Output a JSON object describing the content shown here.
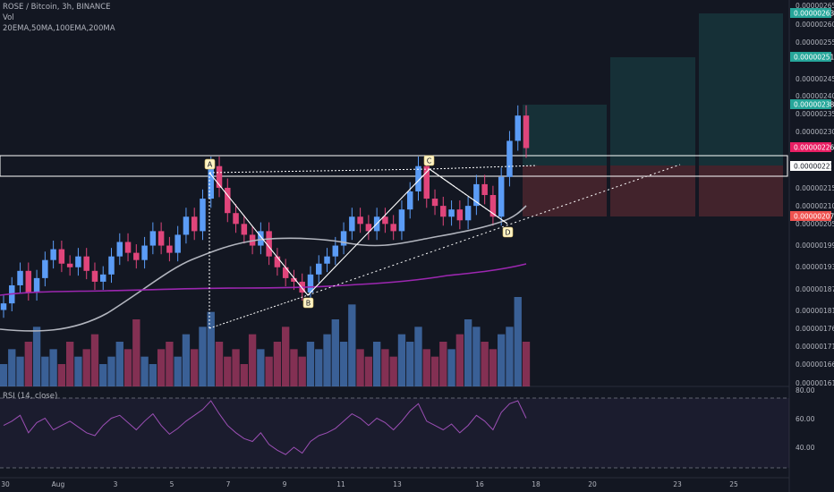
{
  "header": {
    "symbol_line": "ROSE / Bitcoin, 3h, BINANCE",
    "vol_label": "Vol",
    "ma_label": "20EMA,50MA,100EMA,200MA",
    "rsi_label": "RSI (14, close)"
  },
  "colors": {
    "background": "#131722",
    "up_candle": "#5b9cf6",
    "down_candle": "#e0457b",
    "ema20": "#b2b5be",
    "ma200": "#9c27b0",
    "rsi_line": "#9c4fb5",
    "target_zone": "#26a69a",
    "stop_zone": "#ef5350",
    "pattern_lines": "#ffffff"
  },
  "price_axis": {
    "ticks": [
      "0.00000265",
      "0.00000260",
      "0.00000255",
      "0.00000245",
      "0.00000240",
      "0.00000235",
      "0.00000230",
      "0.00000215",
      "0.00000210",
      "0.00000205",
      "0.00000199",
      "0.00000193",
      "0.00000187",
      "0.00000181",
      "0.00000176",
      "0.00000171",
      "0.00000166",
      "0.00000161"
    ],
    "badges": [
      {
        "label": "0.00000263",
        "kind": "target"
      },
      {
        "label": "0.00000251",
        "kind": "target"
      },
      {
        "label": "0.00000238",
        "kind": "target"
      },
      {
        "label": "0.00000226",
        "kind": "current"
      },
      {
        "label": "0.00000221",
        "kind": "level"
      },
      {
        "label": "0.00000207",
        "kind": "stop"
      }
    ]
  },
  "rsi_axis": {
    "ticks": [
      "80.00",
      "60.00",
      "40.00"
    ]
  },
  "time_axis": {
    "ticks": [
      "30",
      "Aug",
      "3",
      "5",
      "7",
      "9",
      "11",
      "13",
      "16",
      "18",
      "20",
      "23",
      "25"
    ]
  },
  "chart_data": {
    "type": "candlestick",
    "symbol": "ROSE / Bitcoin",
    "interval": "3h",
    "exchange": "BINANCE",
    "ylim": [
      1.6e-06,
      2.67e-06
    ],
    "pattern_points": [
      {
        "label": "A",
        "price": 2.21e-06
      },
      {
        "label": "B",
        "price": 1.87e-06
      },
      {
        "label": "C",
        "price": 2.21e-06
      },
      {
        "label": "D",
        "price": 2.06e-06
      }
    ],
    "resistance_zone": [
      2.16e-06,
      2.23e-06
    ],
    "targets": [
      2.38e-06,
      2.51e-06,
      2.63e-06
    ],
    "stop": 2.07e-06,
    "close_points": [
      1.83e-06,
      1.88e-06,
      1.92e-06,
      1.86e-06,
      1.9e-06,
      1.95e-06,
      1.98e-06,
      1.94e-06,
      1.93e-06,
      1.96e-06,
      1.92e-06,
      1.89e-06,
      1.91e-06,
      1.96e-06,
      2e-06,
      1.97e-06,
      1.95e-06,
      1.99e-06,
      2.03e-06,
      1.99e-06,
      1.97e-06,
      2.02e-06,
      2.07e-06,
      2.03e-06,
      2.12e-06,
      2.21e-06,
      2.15e-06,
      2.08e-06,
      2.05e-06,
      2.02e-06,
      1.99e-06,
      2.03e-06,
      1.96e-06,
      1.93e-06,
      1.9e-06,
      1.89e-06,
      1.86e-06,
      1.91e-06,
      1.94e-06,
      1.96e-06,
      1.99e-06,
      2.03e-06,
      2.07e-06,
      2.05e-06,
      2.03e-06,
      2.07e-06,
      2.05e-06,
      2.03e-06,
      2.09e-06,
      2.14e-06,
      2.21e-06,
      2.12e-06,
      2.1e-06,
      2.07e-06,
      2.09e-06,
      2.06e-06,
      2.1e-06,
      2.16e-06,
      2.13e-06,
      2.07e-06,
      2.18e-06,
      2.28e-06,
      2.35e-06,
      2.26e-06
    ],
    "volume_points": [
      3,
      5,
      4,
      6,
      8,
      4,
      5,
      3,
      6,
      4,
      5,
      7,
      3,
      4,
      6,
      5,
      9,
      4,
      3,
      5,
      6,
      4,
      7,
      5,
      8,
      10,
      6,
      4,
      5,
      3,
      7,
      5,
      4,
      6,
      8,
      5,
      4,
      6,
      5,
      7,
      9,
      6,
      11,
      5,
      4,
      6,
      5,
      4,
      7,
      6,
      8,
      5,
      4,
      6,
      5,
      7,
      9,
      8,
      6,
      5,
      7,
      8,
      12,
      6
    ],
    "rsi_points": [
      55,
      58,
      62,
      50,
      57,
      60,
      52,
      55,
      58,
      54,
      50,
      48,
      55,
      60,
      62,
      57,
      52,
      58,
      63,
      55,
      49,
      53,
      58,
      62,
      66,
      72,
      63,
      55,
      50,
      46,
      44,
      50,
      42,
      38,
      35,
      40,
      36,
      44,
      48,
      50,
      53,
      58,
      63,
      60,
      55,
      60,
      57,
      52,
      58,
      65,
      70,
      58,
      55,
      52,
      56,
      50,
      55,
      62,
      58,
      52,
      64,
      70,
      72,
      60
    ],
    "rsi_levels": [
      70,
      30
    ]
  }
}
